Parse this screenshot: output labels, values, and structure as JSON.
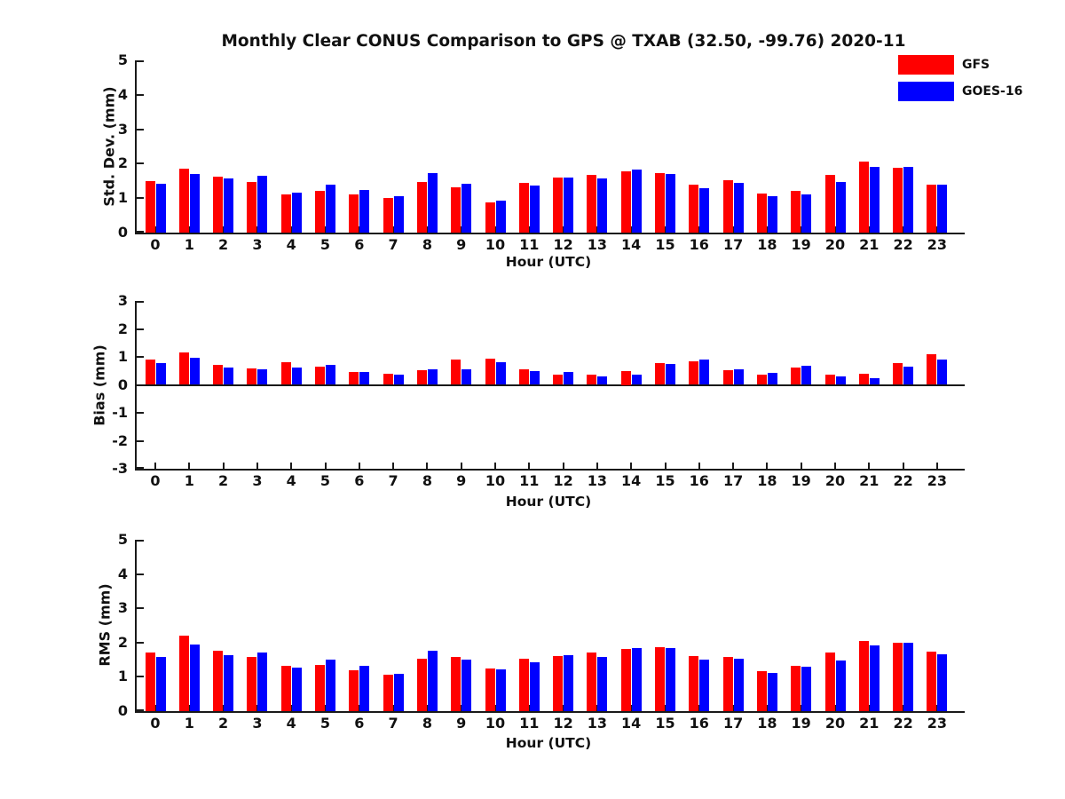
{
  "title": "Monthly Clear CONUS Comparison to GPS @ TXAB (32.50, -99.76) 2020-11",
  "legend": {
    "items": [
      {
        "label": "GFS",
        "color": "#ff0000"
      },
      {
        "label": "GOES-16",
        "color": "#0000ff"
      }
    ]
  },
  "chart_data": [
    {
      "type": "bar",
      "ylabel": "Std. Dev. (mm)",
      "xlabel": "Hour (UTC)",
      "ylim": [
        0,
        5
      ],
      "yticks": [
        0,
        1,
        2,
        3,
        4,
        5
      ],
      "legend_position": "top-right",
      "grid": false,
      "categories": [
        "0",
        "1",
        "2",
        "3",
        "4",
        "5",
        "6",
        "7",
        "8",
        "9",
        "10",
        "11",
        "12",
        "13",
        "14",
        "15",
        "16",
        "17",
        "18",
        "19",
        "20",
        "21",
        "22",
        "23"
      ],
      "series": [
        {
          "name": "GFS",
          "color": "#ff0000",
          "values": [
            1.5,
            1.85,
            1.63,
            1.47,
            1.1,
            1.22,
            1.1,
            1.0,
            1.48,
            1.32,
            0.88,
            1.45,
            1.6,
            1.67,
            1.78,
            1.73,
            1.4,
            1.53,
            1.13,
            1.21,
            1.67,
            2.06,
            1.87,
            1.38
          ]
        },
        {
          "name": "GOES-16",
          "color": "#0000ff",
          "values": [
            1.42,
            1.7,
            1.57,
            1.65,
            1.15,
            1.38,
            1.25,
            1.05,
            1.72,
            1.43,
            0.93,
            1.36,
            1.6,
            1.56,
            1.83,
            1.7,
            1.3,
            1.45,
            1.05,
            1.12,
            1.47,
            1.9,
            1.9,
            1.38
          ]
        }
      ]
    },
    {
      "type": "bar",
      "ylabel": "Bias (mm)",
      "xlabel": "Hour (UTC)",
      "ylim": [
        -3,
        3
      ],
      "yticks": [
        3,
        2,
        1,
        0,
        -1,
        -2,
        -3
      ],
      "grid": false,
      "categories": [
        "0",
        "1",
        "2",
        "3",
        "4",
        "5",
        "6",
        "7",
        "8",
        "9",
        "10",
        "11",
        "12",
        "13",
        "14",
        "15",
        "16",
        "17",
        "18",
        "19",
        "20",
        "21",
        "22",
        "23"
      ],
      "series": [
        {
          "name": "GFS",
          "color": "#ff0000",
          "values": [
            0.92,
            1.15,
            0.71,
            0.58,
            0.8,
            0.66,
            0.45,
            0.4,
            0.51,
            0.89,
            0.93,
            0.55,
            0.38,
            0.38,
            0.5,
            0.77,
            0.85,
            0.52,
            0.38,
            0.62,
            0.35,
            0.4,
            0.77,
            1.1
          ]
        },
        {
          "name": "GOES-16",
          "color": "#0000ff",
          "values": [
            0.78,
            0.97,
            0.62,
            0.57,
            0.61,
            0.72,
            0.46,
            0.35,
            0.56,
            0.56,
            0.82,
            0.49,
            0.47,
            0.3,
            0.36,
            0.76,
            0.9,
            0.57,
            0.44,
            0.69,
            0.31,
            0.24,
            0.64,
            0.91
          ]
        }
      ]
    },
    {
      "type": "bar",
      "ylabel": "RMS (mm)",
      "xlabel": "Hour (UTC)",
      "ylim": [
        0,
        5
      ],
      "yticks": [
        0,
        1,
        2,
        3,
        4,
        5
      ],
      "grid": false,
      "categories": [
        "0",
        "1",
        "2",
        "3",
        "4",
        "5",
        "6",
        "7",
        "8",
        "9",
        "10",
        "11",
        "12",
        "13",
        "14",
        "15",
        "16",
        "17",
        "18",
        "19",
        "20",
        "21",
        "22",
        "23"
      ],
      "series": [
        {
          "name": "GFS",
          "color": "#ff0000",
          "values": [
            1.72,
            2.2,
            1.77,
            1.57,
            1.32,
            1.36,
            1.18,
            1.07,
            1.54,
            1.57,
            1.24,
            1.53,
            1.61,
            1.7,
            1.82,
            1.87,
            1.61,
            1.58,
            1.17,
            1.33,
            1.7,
            2.05,
            2.0,
            1.73
          ]
        },
        {
          "name": "GOES-16",
          "color": "#0000ff",
          "values": [
            1.58,
            1.95,
            1.64,
            1.72,
            1.27,
            1.51,
            1.31,
            1.1,
            1.77,
            1.5,
            1.21,
            1.42,
            1.63,
            1.58,
            1.85,
            1.83,
            1.5,
            1.54,
            1.12,
            1.3,
            1.47,
            1.91,
            2.0,
            1.67
          ]
        }
      ]
    }
  ]
}
